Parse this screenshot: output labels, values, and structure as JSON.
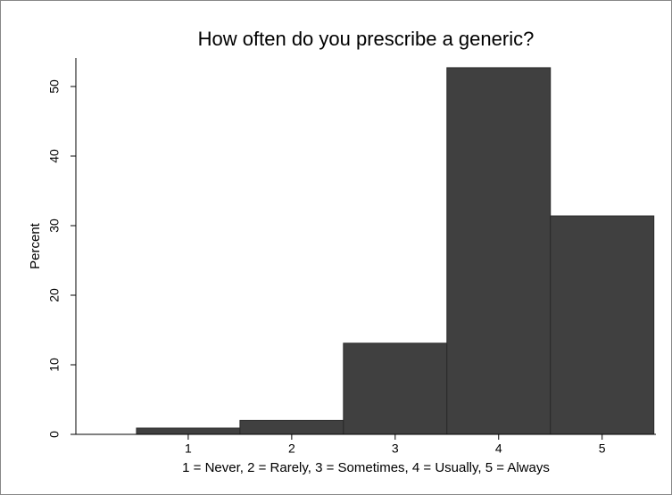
{
  "chart_data": {
    "type": "histogram",
    "title": "How often do you prescribe a generic?",
    "x_label": "1 = Never, 2 = Rarely, 3 = Sometimes, 4 = Usually, 5 = Always",
    "y_label": "Percent",
    "bins": [
      0.5,
      1.5,
      2.5,
      3.5,
      4.5,
      5.5
    ],
    "values": [
      0.9,
      2.0,
      13.1,
      52.7,
      31.4
    ],
    "color": "#404040",
    "xlim": [
      -0.086,
      5.52
    ],
    "xticks": [
      1,
      2,
      3,
      4,
      5
    ],
    "ylim": [
      0,
      54.1
    ],
    "yticks": [
      0,
      10,
      20,
      30,
      40,
      50
    ]
  }
}
